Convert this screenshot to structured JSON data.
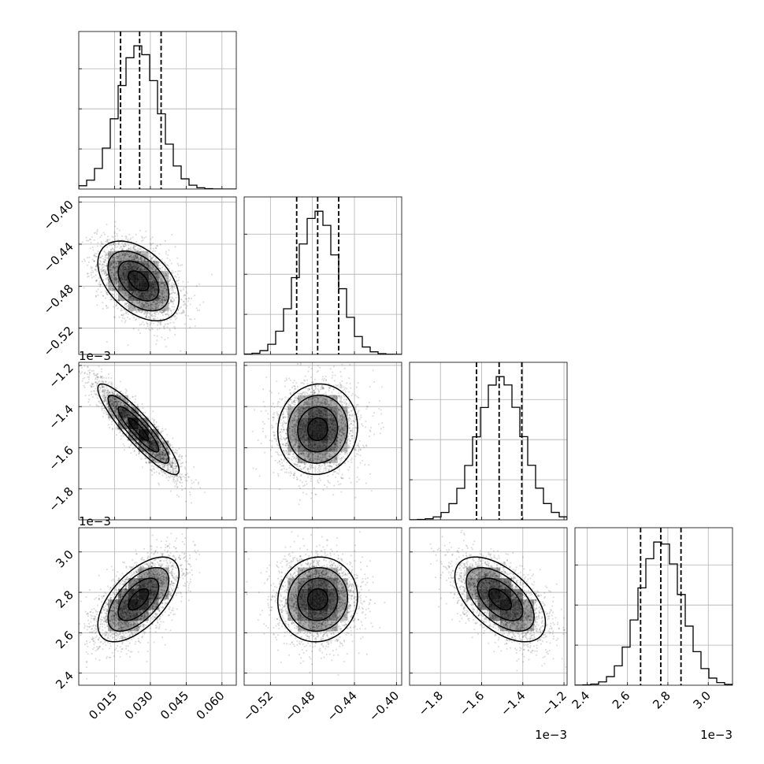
{
  "chart_data": {
    "type": "corner",
    "n_params": 4,
    "params": [
      {
        "name": "",
        "range": [
          0.0,
          0.066
        ],
        "ticks": [
          0.015,
          0.03,
          0.045,
          0.06
        ],
        "tick_labels": [
          "0.015",
          "0.030",
          "0.045",
          "0.060"
        ],
        "offset_label": "",
        "mean": 0.025,
        "sd": 0.0085,
        "quantiles": [
          0.0175,
          0.0255,
          0.0345
        ],
        "hist_peak": 1.0,
        "hist_ticks": [
          0.28,
          0.56,
          0.84
        ]
      },
      {
        "name": "",
        "range": [
          -0.545,
          -0.395
        ],
        "ticks": [
          -0.52,
          -0.48,
          -0.44,
          -0.4
        ],
        "tick_labels": [
          "−0.52",
          "−0.48",
          "−0.44",
          "−0.40"
        ],
        "offset_label": "",
        "mean": -0.475,
        "sd": 0.019,
        "quantiles": [
          -0.495,
          -0.475,
          -0.455
        ],
        "hist_peak": 1.0,
        "hist_ticks": [
          0.28,
          0.56,
          0.84
        ]
      },
      {
        "name": "",
        "range": [
          -1.95,
          -1.185
        ],
        "ticks": [
          -1.8,
          -1.6,
          -1.4,
          -1.2
        ],
        "tick_labels": [
          "−1.8",
          "−1.6",
          "−1.4",
          "−1.2"
        ],
        "offset_label": "1e−3",
        "mean": -1.51,
        "sd": 0.11,
        "quantiles": [
          -1.625,
          -1.515,
          -1.405
        ],
        "hist_peak": 1.0,
        "hist_ticks": [
          0.28,
          0.56,
          0.84
        ]
      },
      {
        "name": "",
        "range": [
          2.34,
          3.12
        ],
        "ticks": [
          2.4,
          2.6,
          2.8,
          3.0
        ],
        "tick_labels": [
          "2.4",
          "2.6",
          "2.8",
          "3.0"
        ],
        "offset_label": "1e−3",
        "mean": 2.765,
        "sd": 0.105,
        "quantiles": [
          2.665,
          2.765,
          2.865
        ],
        "hist_peak": 1.0,
        "hist_ticks": [
          0.28,
          0.56,
          0.84
        ]
      }
    ],
    "correlations": {
      "1-0": -0.45,
      "2-0": -0.9,
      "2-1": 0.05,
      "3-0": 0.6,
      "3-1": 0.05,
      "3-2": -0.55
    },
    "contour_levels_sigma": [
      0.5,
      1.0,
      1.5,
      2.0
    ],
    "n_samples": 3000,
    "hist_bins": 20,
    "grid": true
  }
}
